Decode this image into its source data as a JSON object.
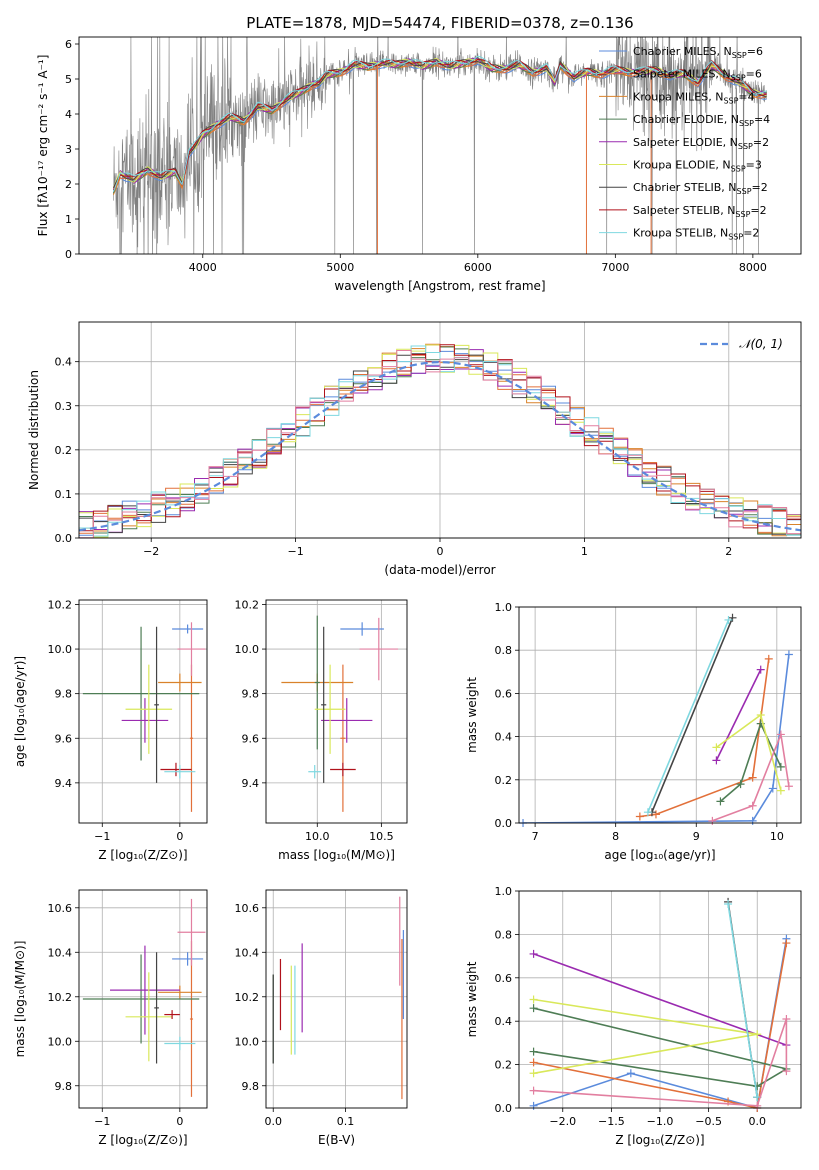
{
  "chart_data": [
    {
      "id": "spectrum",
      "type": "line",
      "title": "PLATE=1878, MJD=54474, FIBERID=0378, z=0.136",
      "xlabel": "wavelength [Angstrom, rest frame]",
      "ylabel": "Flux [fλ10⁻¹⁷ erg cm⁻² s⁻¹ A⁻¹]",
      "xlim": [
        3100,
        8350
      ],
      "ylim": [
        0,
        6.2
      ],
      "xticks": [
        4000,
        5000,
        6000,
        7000,
        8000
      ],
      "yticks": [
        0,
        1,
        2,
        3,
        4,
        5,
        6
      ],
      "grid": false,
      "legend": "right",
      "series": [
        {
          "name": "Chabrier MILES, N_SSP=6",
          "color": "#5b8bdc"
        },
        {
          "name": "Salpeter MILES, N_SSP=6",
          "color": "#e2703a"
        },
        {
          "name": "Kroupa MILES, N_SSP=4",
          "color": "#d9822b"
        },
        {
          "name": "Chabrier ELODIE, N_SSP=4",
          "color": "#4e7d55"
        },
        {
          "name": "Salpeter ELODIE, N_SSP=2",
          "color": "#9a2bb0"
        },
        {
          "name": "Kroupa ELODIE, N_SSP=3",
          "color": "#d9e85a"
        },
        {
          "name": "Chabrier STELIB, N_SSP=2",
          "color": "#444444"
        },
        {
          "name": "Salpeter STELIB, N_SSP=2",
          "color": "#b0121b"
        },
        {
          "name": "Kroupa STELIB, N_SSP=2",
          "color": "#7fd8e0"
        }
      ],
      "model_x": [
        3350,
        3400,
        3500,
        3600,
        3700,
        3800,
        3850,
        3900,
        3950,
        4000,
        4100,
        4200,
        4300,
        4400,
        4500,
        4600,
        4700,
        4800,
        4850,
        4900,
        5000,
        5100,
        5200,
        5300,
        5400,
        5500,
        5600,
        5700,
        5800,
        5900,
        6000,
        6100,
        6200,
        6300,
        6400,
        6500,
        6560,
        6600,
        6700,
        6800,
        6900,
        7000,
        7100,
        7200,
        7300,
        7400,
        7500,
        7600,
        7700,
        7800,
        7900,
        8000,
        8100
      ],
      "model_y": [
        1.8,
        2.3,
        2.1,
        2.4,
        2.2,
        2.35,
        2.0,
        2.9,
        3.1,
        3.4,
        3.7,
        3.9,
        3.8,
        4.2,
        4.1,
        4.4,
        4.6,
        4.85,
        4.9,
        5.1,
        5.2,
        5.4,
        5.35,
        5.45,
        5.4,
        5.5,
        5.35,
        5.5,
        5.35,
        5.45,
        5.55,
        5.3,
        5.3,
        5.4,
        5.2,
        5.3,
        4.9,
        5.4,
        5.05,
        5.2,
        5.15,
        5.25,
        5.2,
        5.2,
        5.25,
        5.1,
        5.15,
        4.9,
        5.4,
        5.1,
        4.9,
        4.6,
        4.55
      ]
    },
    {
      "id": "residuals",
      "type": "line",
      "xlabel": "(data-model)/error",
      "ylabel": "Normed distribution",
      "xlim": [
        -2.5,
        2.5
      ],
      "ylim": [
        0,
        0.49
      ],
      "xticks": [
        -2,
        -1,
        0,
        1,
        2
      ],
      "yticks": [
        0.0,
        0.1,
        0.2,
        0.3,
        0.4
      ],
      "grid": true,
      "legend": "top-right",
      "gaussian_label": "𝒩(0, 1)",
      "hist_colors": [
        "#5b8bdc",
        "#e2703a",
        "#d9822b",
        "#4e7d55",
        "#9a2bb0",
        "#d9e85a",
        "#444444",
        "#b0121b",
        "#7fd8e0",
        "#e27fa0"
      ]
    },
    {
      "id": "age-vs-Z",
      "type": "scatter",
      "xlabel": "Z [log₁₀(Z/Z⊙)]",
      "ylabel": "age  [log₁₀(age/yr)]",
      "xlim": [
        -1.3,
        0.35
      ],
      "ylim": [
        9.22,
        10.22
      ],
      "xticks": [
        -1,
        0
      ],
      "yticks": [
        9.4,
        9.6,
        9.8,
        10.0,
        10.2
      ],
      "grid": true,
      "points": [
        {
          "x": 0.1,
          "xerr": 0.2,
          "y": 10.09,
          "yerr": 0.02,
          "color": "#5b8bdc"
        },
        {
          "x": 0.15,
          "xerr": 0.02,
          "y": 9.6,
          "yerr": 0.33,
          "color": "#e2703a"
        },
        {
          "x": 0.0,
          "xerr": 0.28,
          "y": 9.85,
          "yerr": 0.04,
          "color": "#d9822b"
        },
        {
          "x": -0.5,
          "xerr": 0.75,
          "y": 9.8,
          "yerr": 0.3,
          "color": "#4e7d55"
        },
        {
          "x": -0.45,
          "xerr": 0.3,
          "y": 9.68,
          "yerr": 0.1,
          "color": "#9a2bb0"
        },
        {
          "x": -0.4,
          "xerr": 0.3,
          "y": 9.73,
          "yerr": 0.2,
          "color": "#d9e85a"
        },
        {
          "x": -0.3,
          "xerr": 0.03,
          "y": 9.75,
          "yerr": 0.35,
          "color": "#444444"
        },
        {
          "x": -0.05,
          "xerr": 0.2,
          "y": 9.46,
          "yerr": 0.03,
          "color": "#b0121b"
        },
        {
          "x": 0.0,
          "xerr": 0.2,
          "y": 9.45,
          "yerr": 0.03,
          "color": "#7fd8e0"
        },
        {
          "x": 0.15,
          "xerr": 0.18,
          "y": 10.0,
          "yerr": 0.12,
          "color": "#e27fa0"
        }
      ]
    },
    {
      "id": "age-vs-mass",
      "type": "scatter",
      "xlabel": "mass [log₁₀(M/M⊙)]",
      "ylabel": "",
      "xlim": [
        9.6,
        10.7
      ],
      "ylim": [
        9.22,
        10.22
      ],
      "xticks": [
        10.0,
        10.5
      ],
      "yticks": [
        9.4,
        9.6,
        9.8,
        10.0,
        10.2
      ],
      "grid": true,
      "points": [
        {
          "x": 10.35,
          "xerr": 0.17,
          "y": 10.09,
          "yerr": 0.03,
          "color": "#5b8bdc"
        },
        {
          "x": 10.2,
          "xerr": 0.02,
          "y": 9.6,
          "yerr": 0.33,
          "color": "#e2703a"
        },
        {
          "x": 10.0,
          "xerr": 0.28,
          "y": 9.85,
          "yerr": 0.04,
          "color": "#d9822b"
        },
        {
          "x": 10.0,
          "xerr": 0.02,
          "y": 9.85,
          "yerr": 0.3,
          "color": "#4e7d55"
        },
        {
          "x": 10.23,
          "xerr": 0.2,
          "y": 9.68,
          "yerr": 0.1,
          "color": "#9a2bb0"
        },
        {
          "x": 10.1,
          "xerr": 0.12,
          "y": 9.73,
          "yerr": 0.2,
          "color": "#d9e85a"
        },
        {
          "x": 10.05,
          "xerr": 0.02,
          "y": 9.75,
          "yerr": 0.35,
          "color": "#444444"
        },
        {
          "x": 10.2,
          "xerr": 0.1,
          "y": 9.46,
          "yerr": 0.03,
          "color": "#b0121b"
        },
        {
          "x": 9.98,
          "xerr": 0.05,
          "y": 9.45,
          "yerr": 0.03,
          "color": "#7fd8e0"
        },
        {
          "x": 10.48,
          "xerr": 0.15,
          "y": 10.0,
          "yerr": 0.14,
          "color": "#e27fa0"
        }
      ]
    },
    {
      "id": "weight-vs-age",
      "type": "line",
      "xlabel": "age  [log₁₀(age/yr)]",
      "ylabel": "mass weight",
      "xlim": [
        6.8,
        10.3
      ],
      "ylim": [
        0,
        1.0
      ],
      "xticks": [
        7,
        8,
        9,
        10
      ],
      "yticks": [
        0.0,
        0.2,
        0.4,
        0.6,
        0.8,
        1.0
      ],
      "grid": true,
      "series": [
        {
          "color": "#5b8bdc",
          "x": [
            6.85,
            9.7,
            9.95,
            10.15
          ],
          "y": [
            0.0,
            0.01,
            0.16,
            0.78
          ]
        },
        {
          "color": "#e2703a",
          "x": [
            8.3,
            8.5,
            9.7,
            9.9
          ],
          "y": [
            0.03,
            0.04,
            0.21,
            0.76
          ]
        },
        {
          "color": "#4e7d55",
          "x": [
            9.3,
            9.55,
            9.8,
            10.05
          ],
          "y": [
            0.1,
            0.18,
            0.46,
            0.26
          ]
        },
        {
          "color": "#9a2bb0",
          "x": [
            9.25,
            9.8
          ],
          "y": [
            0.29,
            0.71
          ]
        },
        {
          "color": "#d9e85a",
          "x": [
            9.25,
            9.8,
            10.05
          ],
          "y": [
            0.35,
            0.5,
            0.15
          ]
        },
        {
          "color": "#444444",
          "x": [
            8.45,
            9.45
          ],
          "y": [
            0.05,
            0.95
          ]
        },
        {
          "color": "#7fd8e0",
          "x": [
            8.4,
            9.4
          ],
          "y": [
            0.05,
            0.94
          ]
        },
        {
          "color": "#e27fa0",
          "x": [
            9.2,
            9.7,
            10.05,
            10.15
          ],
          "y": [
            0.01,
            0.08,
            0.41,
            0.17
          ]
        }
      ]
    },
    {
      "id": "mass-vs-Z",
      "type": "scatter",
      "xlabel": "Z [log₁₀(Z/Z⊙)]",
      "ylabel": "mass [log₁₀(M/M⊙)]",
      "xlim": [
        -1.3,
        0.35
      ],
      "ylim": [
        9.7,
        10.68
      ],
      "xticks": [
        -1,
        0
      ],
      "yticks": [
        9.8,
        10.0,
        10.2,
        10.4,
        10.6
      ],
      "grid": true,
      "points": [
        {
          "x": 0.1,
          "xerr": 0.2,
          "y": 10.37,
          "yerr": 0.03,
          "color": "#5b8bdc"
        },
        {
          "x": 0.15,
          "xerr": 0.02,
          "y": 10.1,
          "yerr": 0.35,
          "color": "#e2703a"
        },
        {
          "x": 0.0,
          "xerr": 0.28,
          "y": 10.22,
          "yerr": 0.03,
          "color": "#d9822b"
        },
        {
          "x": -0.5,
          "xerr": 0.75,
          "y": 10.19,
          "yerr": 0.2,
          "color": "#4e7d55"
        },
        {
          "x": -0.45,
          "xerr": 0.45,
          "y": 10.23,
          "yerr": 0.2,
          "color": "#9a2bb0"
        },
        {
          "x": -0.4,
          "xerr": 0.3,
          "y": 10.11,
          "yerr": 0.2,
          "color": "#d9e85a"
        },
        {
          "x": -0.3,
          "xerr": 0.03,
          "y": 10.15,
          "yerr": 0.25,
          "color": "#444444"
        },
        {
          "x": -0.1,
          "xerr": 0.1,
          "y": 10.12,
          "yerr": 0.02,
          "color": "#b0121b"
        },
        {
          "x": 0.0,
          "xerr": 0.2,
          "y": 9.99,
          "yerr": 0.03,
          "color": "#7fd8e0"
        },
        {
          "x": 0.15,
          "xerr": 0.18,
          "y": 10.49,
          "yerr": 0.15,
          "color": "#e27fa0"
        }
      ]
    },
    {
      "id": "mass-vs-ebv",
      "type": "scatter",
      "xlabel": "E(B-V)",
      "ylabel": "",
      "xlim": [
        -0.01,
        0.185
      ],
      "ylim": [
        9.7,
        10.68
      ],
      "xticks": [
        0.0,
        0.1
      ],
      "yticks": [
        9.8,
        10.0,
        10.2,
        10.4,
        10.6
      ],
      "grid": true,
      "points": [
        {
          "x": 0.18,
          "y": 10.3,
          "yerr": 0.2,
          "color": "#5b8bdc"
        },
        {
          "x": 0.178,
          "y": 10.1,
          "yerr": 0.36,
          "color": "#e2703a"
        },
        {
          "x": 0.0,
          "y": 10.1,
          "yerr": 0.2,
          "color": "#4e7d55"
        },
        {
          "x": 0.04,
          "y": 10.24,
          "yerr": 0.2,
          "color": "#9a2bb0"
        },
        {
          "x": 0.025,
          "y": 10.14,
          "yerr": 0.2,
          "color": "#d9e85a"
        },
        {
          "x": 0.0,
          "y": 10.1,
          "yerr": 0.2,
          "color": "#444444"
        },
        {
          "x": 0.01,
          "y": 10.21,
          "yerr": 0.16,
          "color": "#b0121b"
        },
        {
          "x": 0.03,
          "y": 10.14,
          "yerr": 0.2,
          "color": "#7fd8e0"
        },
        {
          "x": 0.175,
          "y": 10.45,
          "yerr": 0.2,
          "color": "#e27fa0"
        }
      ]
    },
    {
      "id": "weight-vs-Z",
      "type": "line",
      "xlabel": "Z [log₁₀(Z/Z⊙)]",
      "ylabel": "mass weight",
      "xlim": [
        -2.45,
        0.45
      ],
      "ylim": [
        0,
        1.0
      ],
      "xticks": [
        -2.0,
        -1.5,
        -1.0,
        -0.5,
        0.0
      ],
      "yticks": [
        0.0,
        0.2,
        0.4,
        0.6,
        0.8,
        1.0
      ],
      "grid": true,
      "series": [
        {
          "color": "#5b8bdc",
          "x": [
            -2.3,
            -1.3,
            0.0,
            0.3
          ],
          "y": [
            0.01,
            0.16,
            0.0,
            0.78
          ]
        },
        {
          "color": "#e2703a",
          "x": [
            -2.3,
            -0.3,
            0.0,
            0.3
          ],
          "y": [
            0.21,
            0.03,
            0.0,
            0.76
          ]
        },
        {
          "color": "#4e7d55",
          "x": [
            -2.3,
            0.0,
            0.3,
            -2.3
          ],
          "y": [
            0.26,
            0.1,
            0.18,
            0.46
          ]
        },
        {
          "color": "#9a2bb0",
          "x": [
            -2.3,
            0.3
          ],
          "y": [
            0.71,
            0.29
          ]
        },
        {
          "color": "#d9e85a",
          "x": [
            -2.3,
            0.0,
            -2.3
          ],
          "y": [
            0.16,
            0.34,
            0.5
          ]
        },
        {
          "color": "#444444",
          "x": [
            -0.3,
            0.0
          ],
          "y": [
            0.95,
            0.05
          ]
        },
        {
          "color": "#7fd8e0",
          "x": [
            -0.3,
            0.0
          ],
          "y": [
            0.94,
            0.05
          ]
        },
        {
          "color": "#e27fa0",
          "x": [
            -2.3,
            0.0,
            0.3,
            0.3
          ],
          "y": [
            0.08,
            0.01,
            0.41,
            0.17
          ]
        }
      ]
    }
  ]
}
